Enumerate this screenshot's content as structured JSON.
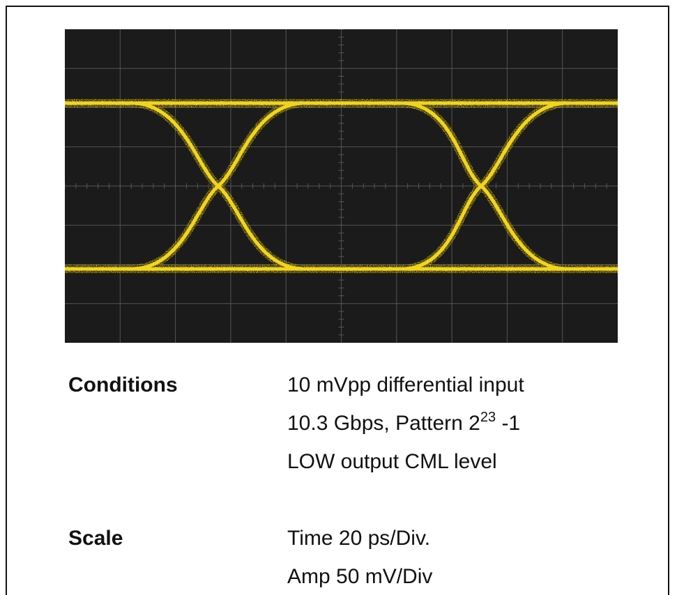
{
  "conditions": {
    "label": "Conditions",
    "lines": [
      {
        "text": "10 mVpp differential input"
      },
      {
        "text": "10.3 Gbps, Pattern 2",
        "sup": "23",
        "after": "-1"
      },
      {
        "text": "LOW output CML level"
      }
    ]
  },
  "scale": {
    "label": "Scale",
    "lines": [
      {
        "text": "Time 20 ps/Div."
      },
      {
        "text": "Amp 50 mV/Div"
      }
    ]
  }
}
